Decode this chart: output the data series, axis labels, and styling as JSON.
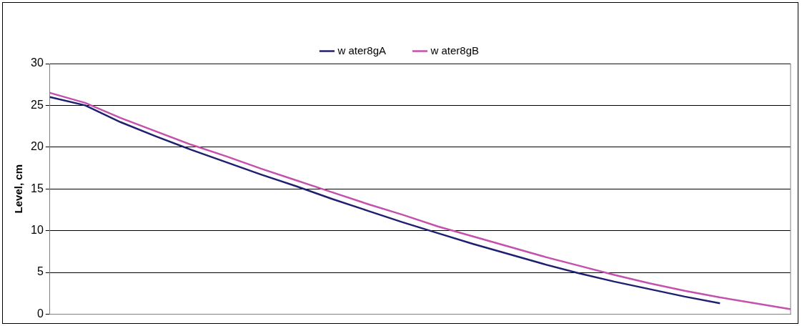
{
  "chart_data": {
    "type": "line",
    "ylabel": "Level, cm",
    "categories": [
      null,
      null,
      null,
      null,
      null,
      null,
      null,
      null,
      null,
      null,
      null,
      null,
      null,
      null,
      null,
      null,
      null,
      null,
      null,
      null,
      null,
      null
    ],
    "series": [
      {
        "name": "w ater8gA",
        "color": "#1f2070",
        "values": [
          26.0,
          25.0,
          23.0,
          21.3,
          19.7,
          18.2,
          16.7,
          15.3,
          13.8,
          12.4,
          11.0,
          9.7,
          8.4,
          7.2,
          6.0,
          4.9,
          3.9,
          3.0,
          2.1,
          1.3,
          null,
          null
        ]
      },
      {
        "name": "w ater8gB",
        "color": "#c451ac",
        "values": [
          26.5,
          25.3,
          23.5,
          21.9,
          20.3,
          18.9,
          17.4,
          16.0,
          14.6,
          13.2,
          11.9,
          10.5,
          9.3,
          8.1,
          6.9,
          5.8,
          4.7,
          3.7,
          2.8,
          2.0,
          1.3,
          0.6
        ]
      }
    ],
    "ylim": [
      0,
      30
    ],
    "yticks": [
      0,
      5,
      10,
      15,
      20,
      25,
      30
    ],
    "grid": "y",
    "legend": "top",
    "marker": "none",
    "line_style": "solid",
    "tick_labels": "y"
  }
}
